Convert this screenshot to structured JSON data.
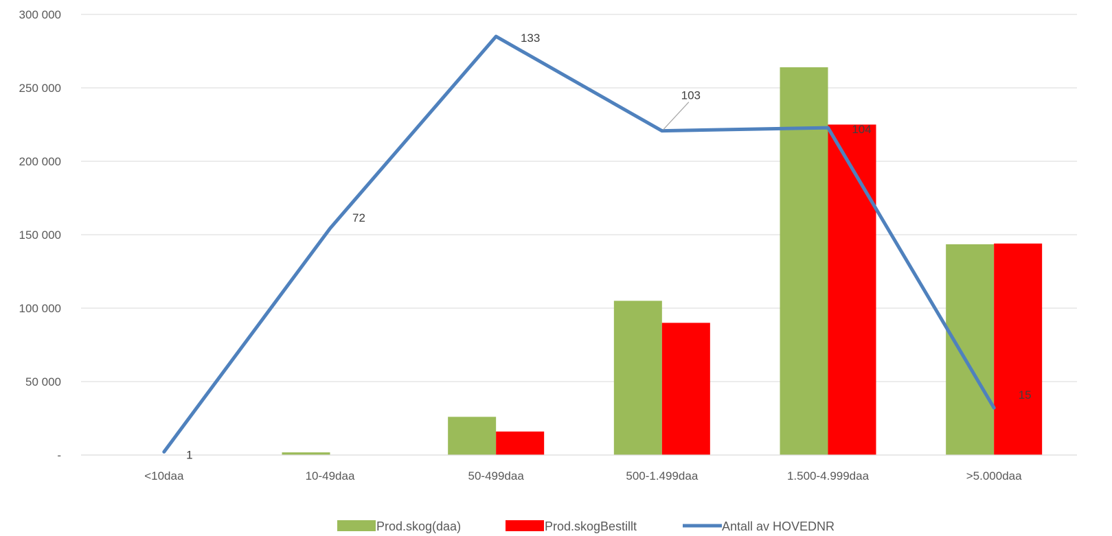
{
  "chart_data": {
    "type": "bar",
    "categories": [
      "<10daa",
      "10-49daa",
      "50-499daa",
      "500-1.499daa",
      "1.500-4.999daa",
      ">5.000daa"
    ],
    "y_ticks": [
      "-",
      "50 000",
      "100 000",
      "150 000",
      "200 000",
      "250 000",
      "300 000"
    ],
    "ylim": [
      0,
      300000
    ],
    "grid": true,
    "legend_position": "bottom",
    "series": [
      {
        "name": "Prod.skog(daa)",
        "kind": "bar",
        "color": "#9BBB59",
        "values": [
          0,
          1800,
          26000,
          105000,
          264000,
          143500
        ]
      },
      {
        "name": "Prod.skogBestillt",
        "kind": "bar",
        "color": "#FF0000",
        "values": [
          0,
          0,
          16000,
          90000,
          225000,
          144000
        ]
      },
      {
        "name": "Antall av HOVEDNR",
        "kind": "line",
        "color": "#4F81BD",
        "values": [
          1,
          72,
          133,
          103,
          104,
          15
        ],
        "labels": [
          "1",
          "72",
          "133",
          "103",
          "104",
          "15"
        ],
        "secondary_max": 140
      }
    ]
  }
}
